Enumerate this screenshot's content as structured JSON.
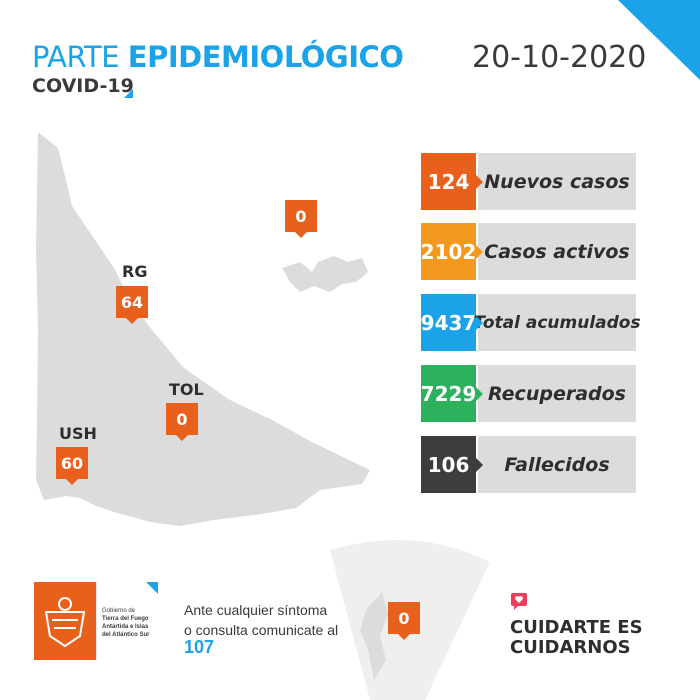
{
  "header": {
    "title_light": "PARTE",
    "title_bold": "EPIDEMIOLÓGICO",
    "subtitle": "COVID-19",
    "date": "20-10-2020"
  },
  "stats": [
    {
      "value": "124",
      "label": "Nuevos casos",
      "color": "#e8601c"
    },
    {
      "value": "2102",
      "label": "Casos activos",
      "color": "#f39a1e"
    },
    {
      "value": "9437",
      "label": "Total acumulados",
      "color": "#1aa3e8"
    },
    {
      "value": "7229",
      "label": "Recuperados",
      "color": "#2eb15d"
    },
    {
      "value": "106",
      "label": "Fallecidos",
      "color": "#3d3d3d"
    }
  ],
  "map": {
    "rg": {
      "label": "RG",
      "value": "64"
    },
    "tol": {
      "label": "TOL",
      "value": "0"
    },
    "ush": {
      "label": "USH",
      "value": "60"
    },
    "malvinas": {
      "value": "0"
    },
    "antartida": {
      "value": "0"
    }
  },
  "logo": {
    "line1": "Gobierno de",
    "line2": "Tierra del Fuego",
    "line3": "Antártida e Islas",
    "line4": "del Atlántico Sur"
  },
  "contact": {
    "line1": "Ante cualquier síntoma",
    "line2": "o consulta comunicate al",
    "number": "107"
  },
  "slogan": {
    "line1": "CUIDARTE ES",
    "line2": "CUIDARNOS"
  },
  "colors": {
    "accent_blue": "#1aa3e8",
    "accent_orange": "#e8601c",
    "map_gray": "#dcdcdc"
  }
}
